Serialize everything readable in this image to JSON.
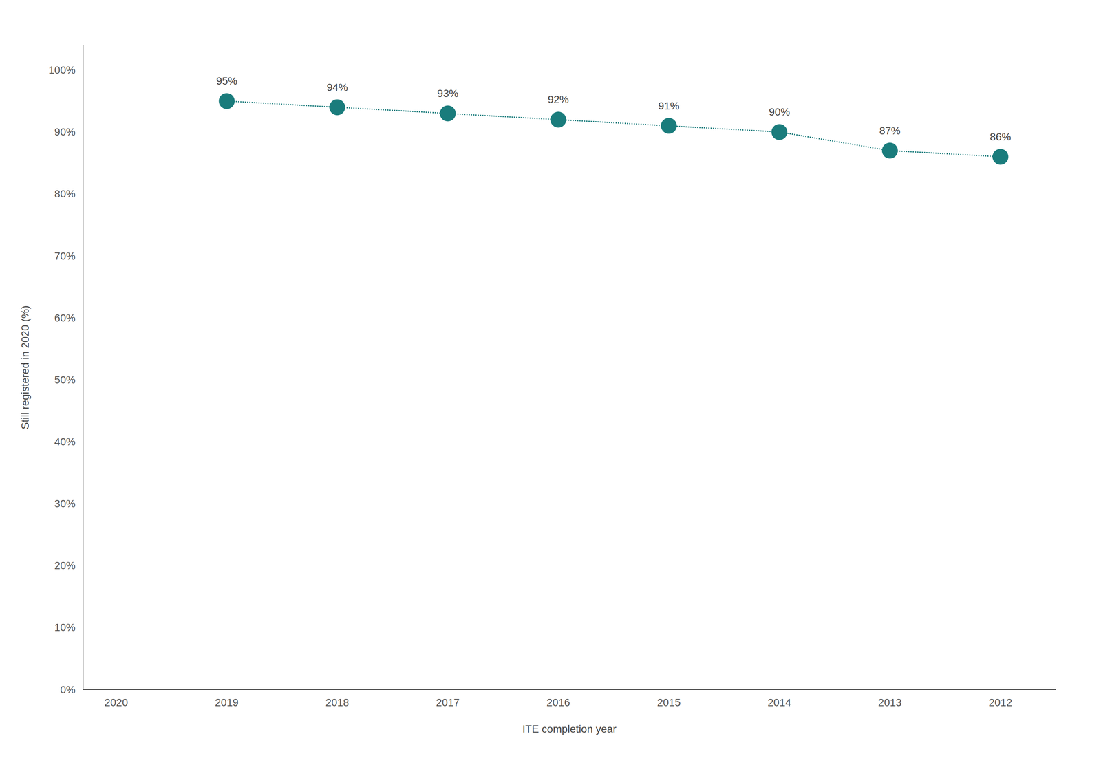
{
  "chart_data": {
    "type": "line",
    "x": [
      2019,
      2018,
      2017,
      2016,
      2015,
      2014,
      2013,
      2012
    ],
    "values": [
      95,
      94,
      93,
      92,
      91,
      90,
      87,
      86
    ],
    "value_labels": [
      "95%",
      "94%",
      "93%",
      "92%",
      "91%",
      "90%",
      "87%",
      "86%"
    ],
    "data_labels": true,
    "xlabel": "ITE completion year",
    "ylabel": "Still registered in 2020 (%)",
    "xlim": [
      2020.3,
      2011.5
    ],
    "ylim": [
      0,
      104
    ],
    "xticks": [
      2020,
      2019,
      2018,
      2017,
      2016,
      2015,
      2014,
      2013,
      2012
    ],
    "yticks": [
      {
        "value": 0,
        "label": "0%"
      },
      {
        "value": 10,
        "label": "10%"
      },
      {
        "value": 20,
        "label": "20%"
      },
      {
        "value": 30,
        "label": "30%"
      },
      {
        "value": 40,
        "label": "40%"
      },
      {
        "value": 50,
        "label": "50%"
      },
      {
        "value": 60,
        "label": "60%"
      },
      {
        "value": 70,
        "label": "70%"
      },
      {
        "value": 80,
        "label": "80%"
      },
      {
        "value": 90,
        "label": "90%"
      },
      {
        "value": 100,
        "label": "100%"
      }
    ],
    "grid": false,
    "line_style": "dotted",
    "marker": "circle",
    "color": "#1a7c7c"
  }
}
